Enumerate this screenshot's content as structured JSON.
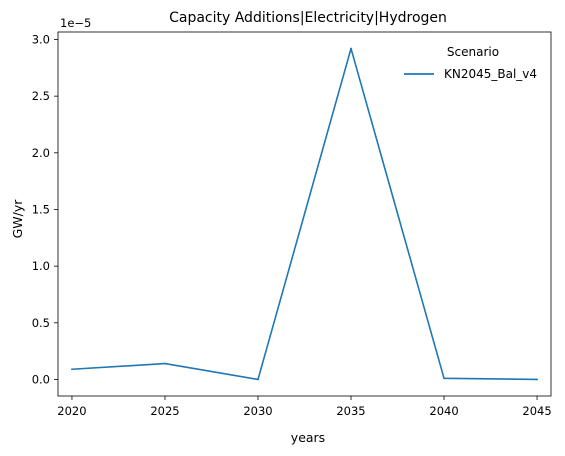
{
  "chart_data": {
    "type": "line",
    "title": "Capacity Additions|Electricity|Hydrogen",
    "xlabel": "years",
    "ylabel": "GW/yr",
    "y_offset_text": "1e−5",
    "x": [
      2020,
      2025,
      2030,
      2035,
      2040,
      2045
    ],
    "x_ticks": [
      "2020",
      "2025",
      "2030",
      "2035",
      "2040",
      "2045"
    ],
    "y_ticks": [
      "0.0",
      "0.5",
      "1.0",
      "1.5",
      "2.0",
      "2.5",
      "3.0"
    ],
    "y_tick_values": [
      0.0,
      0.5,
      1.0,
      1.5,
      2.0,
      2.5,
      3.0
    ],
    "xlim": [
      2019.25,
      2045.75
    ],
    "ylim": [
      -0.146,
      3.066
    ],
    "y_scale": 1e-05,
    "grid": false,
    "legend_title": "Scenario",
    "legend_position": "top-right",
    "series": [
      {
        "name": "KN2045_Bal_v4",
        "color": "#1f77b4",
        "values": [
          0.09,
          0.14,
          0.0,
          2.92,
          0.01,
          0.0
        ]
      }
    ]
  }
}
